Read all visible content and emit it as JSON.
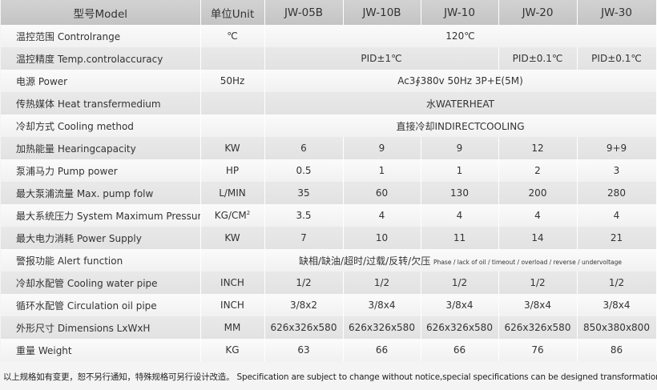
{
  "header": {
    "model": "型号Model",
    "unit": "单位Unit",
    "models": [
      "JW-05B",
      "JW-10B",
      "JW-10",
      "JW-20",
      "JW-30"
    ]
  },
  "rows": {
    "control_range": {
      "label": "温控范围 Controlrange",
      "unit": "℃",
      "value": "120℃"
    },
    "accuracy": {
      "label": "温控精度 Temp.controlaccuracy",
      "unit": "",
      "v1": "PID±1℃",
      "v2": "PID±0.1℃",
      "v3": "PID±0.1℃"
    },
    "power": {
      "label": "电源 Power",
      "unit": "50Hz",
      "value": "Ac3∮380v 50Hz 3P+E(5M)"
    },
    "heat_medium": {
      "label": "传热媒体 Heat transfermedium",
      "unit": "",
      "value": "水WATERHEAT"
    },
    "cooling": {
      "label": "冷却方式 Cooling method",
      "unit": "",
      "value": "直接冷却INDIRECTCOOLING"
    },
    "heating": {
      "label": "加热能量 Hearingcapacity",
      "unit": "KW",
      "values": [
        "6",
        "9",
        "9",
        "12",
        "9+9"
      ]
    },
    "pump_power": {
      "label": "泵浦马力 Pump power",
      "unit": "HP",
      "values": [
        "0.5",
        "1",
        "1",
        "2",
        "3"
      ]
    },
    "pump_flow": {
      "label": "最大泵浦流量 Max. pump folw",
      "unit": "L/MIN",
      "values": [
        "35",
        "60",
        "130",
        "200",
        "280"
      ]
    },
    "pressure": {
      "label": "最大系统压力 System Maximum Pressure",
      "unit": "KG/CM",
      "unit_sup": "2",
      "values": [
        "3.5",
        "4",
        "4",
        "4",
        "4"
      ]
    },
    "supply": {
      "label": "最大电力消耗 Power Supply",
      "unit": "KW",
      "values": [
        "7",
        "10",
        "11",
        "14",
        "21"
      ]
    },
    "alert": {
      "label": "警报功能 Alert function",
      "unit": "",
      "value_cn": "缺相/缺油/超时/过载/反转/欠压",
      "value_en": "Phase / lack of oil / timeout / overload / reverse / undervoltage"
    },
    "cooling_pipe": {
      "label": "冷却水配管 Cooling water pipe",
      "unit": "INCH",
      "values": [
        "1/2",
        "1/2",
        "1/2",
        "1/2",
        "1/2"
      ]
    },
    "oil_pipe": {
      "label": "循环水配管 Circulation oil pipe",
      "unit": "INCH",
      "values": [
        "3/8x2",
        "3/8x4",
        "3/8x4",
        "3/8x4",
        "3/8x4"
      ]
    },
    "dimensions": {
      "label": "外形尺寸 Dimensions LxWxH",
      "unit": "MM",
      "values": [
        "626x326x580",
        "626x326x580",
        "626x326x580",
        "626x326x580",
        "850x380x800"
      ]
    },
    "weight": {
      "label": "重量 Weight",
      "unit": "KG",
      "values": [
        "63",
        "66",
        "66",
        "76",
        "86"
      ]
    }
  },
  "footer": "以上规格如有变更，恕不另行通知，特殊规格可另行设计改造。 Specification are subject to change without notice,special specifications can be designed transformation."
}
